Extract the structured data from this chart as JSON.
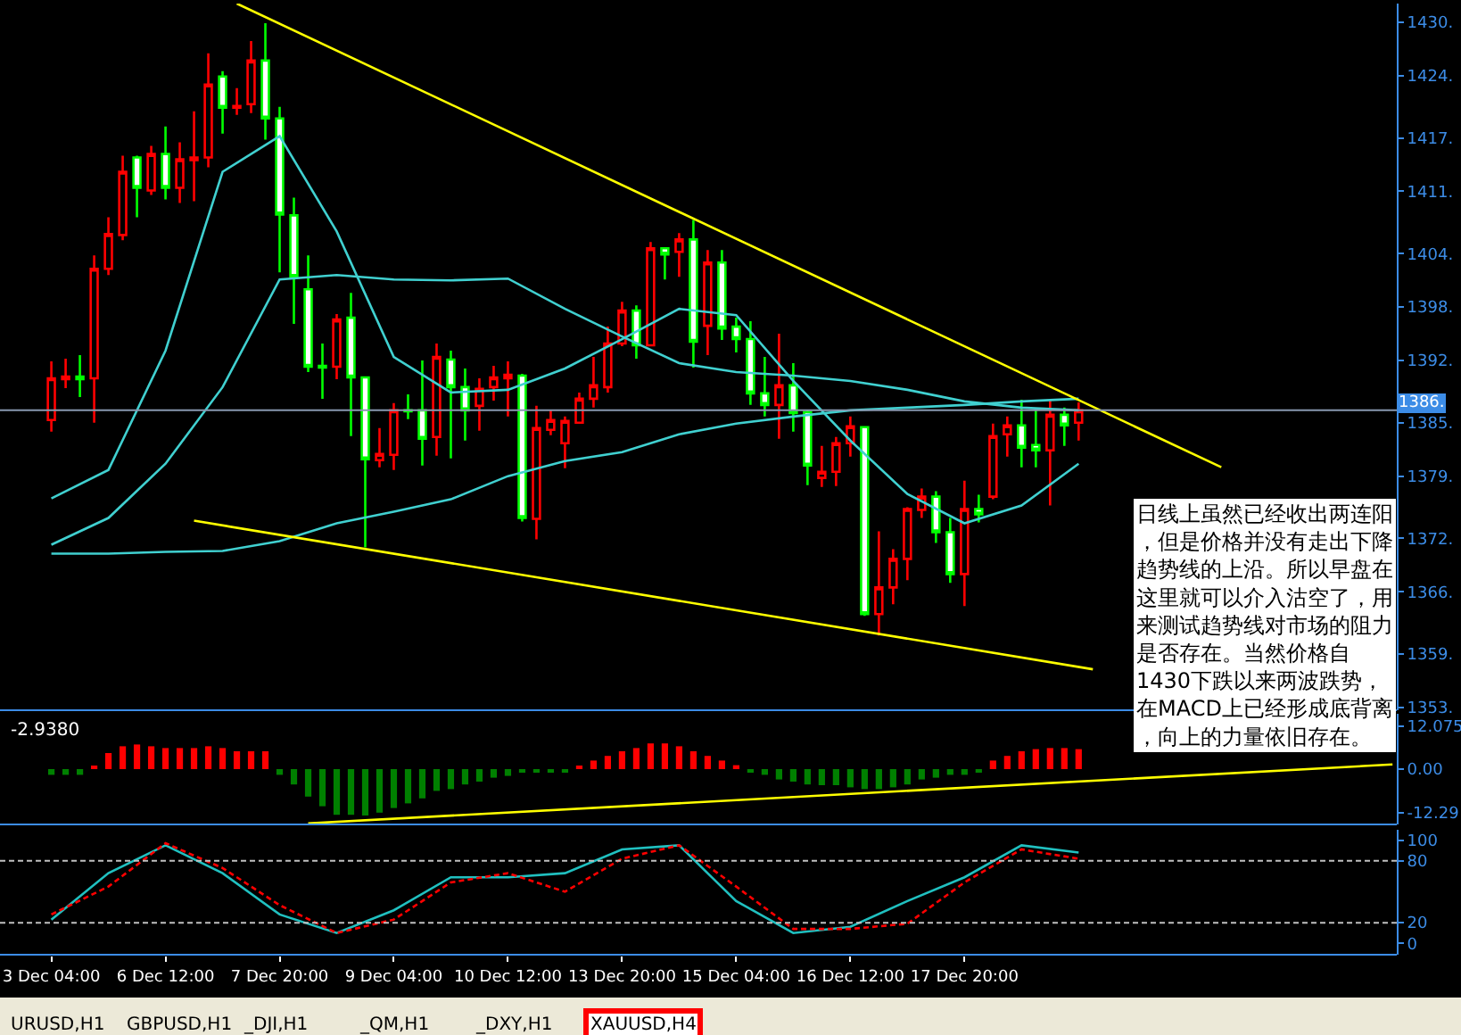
{
  "chart_data": [
    {
      "type": "candlestick",
      "categories": [
        "3 Dec 04:00",
        null,
        null,
        null,
        null,
        null,
        null,
        null,
        "6 Dec 12:00",
        null,
        null,
        null,
        null,
        null,
        null,
        null,
        "7 Dec 20:00",
        null,
        null,
        null,
        null,
        null,
        null,
        null,
        "9 Dec 04:00",
        null,
        null,
        null,
        null,
        null,
        null,
        null,
        "10 Dec 12:00",
        null,
        null,
        null,
        null,
        null,
        null,
        null,
        "13 Dec 20:00",
        null,
        null,
        null,
        null,
        null,
        null,
        null,
        "15 Dec 04:00",
        null,
        null,
        null,
        null,
        null,
        null,
        null,
        "16 Dec 12:00",
        null,
        null,
        null,
        null,
        null,
        null,
        null,
        "17 Dec 20:00",
        null,
        null,
        null,
        null,
        null,
        null,
        null,
        null,
        null,
        null,
        null,
        null,
        null,
        null,
        null,
        null,
        null,
        null,
        null,
        null,
        null,
        null,
        null,
        null,
        null,
        null,
        null,
        null,
        null,
        null
      ],
      "ohlc": [
        [
          1385.3,
          1391.9,
          1384.0,
          1390.0
        ],
        [
          1389.9,
          1392.2,
          1388.9,
          1390.2
        ],
        [
          1390.2,
          1392.6,
          1387.9,
          1389.9
        ],
        [
          1390.0,
          1403.8,
          1385.0,
          1402.3
        ],
        [
          1402.3,
          1408.1,
          1401.6,
          1406.2
        ],
        [
          1406.1,
          1415.0,
          1405.5,
          1413.2
        ],
        [
          1414.8,
          1415.0,
          1408.1,
          1411.4
        ],
        [
          1411.1,
          1416.1,
          1410.6,
          1415.2
        ],
        [
          1415.2,
          1418.3,
          1410.1,
          1411.4
        ],
        [
          1411.4,
          1416.5,
          1409.7,
          1414.6
        ],
        [
          1414.5,
          1420.0,
          1409.9,
          1414.8
        ],
        [
          1414.8,
          1426.5,
          1413.7,
          1423.0
        ],
        [
          1423.9,
          1424.5,
          1417.5,
          1420.4
        ],
        [
          1420.4,
          1422.6,
          1419.6,
          1420.6
        ],
        [
          1420.8,
          1427.9,
          1419.8,
          1425.7
        ],
        [
          1425.7,
          1429.9,
          1416.8,
          1419.2
        ],
        [
          1419.2,
          1420.5,
          1401.9,
          1408.4
        ],
        [
          1408.3,
          1410.3,
          1396.1,
          1401.4
        ],
        [
          1400.0,
          1403.8,
          1390.7,
          1391.3
        ],
        [
          1391.4,
          1393.9,
          1387.7,
          1391.2
        ],
        [
          1391.3,
          1397.2,
          1389.9,
          1396.6
        ],
        [
          1396.8,
          1399.6,
          1383.5,
          1390.1
        ],
        [
          1390.1,
          1390.1,
          1371.0,
          1380.9
        ],
        [
          1380.8,
          1384.4,
          1380.0,
          1381.5
        ],
        [
          1381.4,
          1387.2,
          1379.7,
          1386.4
        ],
        [
          1386.4,
          1388.2,
          1385.4,
          1386.3
        ],
        [
          1386.4,
          1392.0,
          1380.2,
          1383.2
        ],
        [
          1383.4,
          1393.9,
          1381.3,
          1392.4
        ],
        [
          1392.1,
          1393.1,
          1381.0,
          1389.0
        ],
        [
          1389.0,
          1391.1,
          1383.0,
          1386.4
        ],
        [
          1386.9,
          1390.0,
          1384.1,
          1388.8
        ],
        [
          1389.0,
          1391.4,
          1387.5,
          1390.1
        ],
        [
          1390.0,
          1391.9,
          1385.7,
          1390.4
        ],
        [
          1390.3,
          1390.5,
          1373.9,
          1374.3
        ],
        [
          1374.2,
          1386.9,
          1371.9,
          1384.4
        ],
        [
          1384.2,
          1386.4,
          1383.6,
          1385.3
        ],
        [
          1382.7,
          1385.7,
          1379.9,
          1385.2
        ],
        [
          1385.0,
          1388.4,
          1384.9,
          1387.7
        ],
        [
          1387.7,
          1392.4,
          1386.7,
          1389.2
        ],
        [
          1389.0,
          1395.8,
          1388.4,
          1393.9
        ],
        [
          1393.9,
          1398.6,
          1393.6,
          1397.6
        ],
        [
          1397.6,
          1398.2,
          1392.2,
          1393.7
        ],
        [
          1393.7,
          1405.3,
          1393.6,
          1404.6
        ],
        [
          1404.6,
          1404.6,
          1401.1,
          1403.9
        ],
        [
          1404.2,
          1406.3,
          1401.4,
          1405.6
        ],
        [
          1405.6,
          1407.8,
          1391.2,
          1394.1
        ],
        [
          1395.9,
          1404.4,
          1392.6,
          1403.0
        ],
        [
          1403.0,
          1404.4,
          1394.3,
          1395.6
        ],
        [
          1395.8,
          1396.8,
          1392.9,
          1394.4
        ],
        [
          1394.4,
          1396.4,
          1387.0,
          1388.3
        ],
        [
          1388.3,
          1392.4,
          1385.7,
          1387.0
        ],
        [
          1387.0,
          1395.0,
          1383.2,
          1389.2
        ],
        [
          1389.2,
          1391.7,
          1384.0,
          1386.1
        ],
        [
          1386.2,
          1386.4,
          1378.0,
          1380.2
        ],
        [
          1378.8,
          1382.4,
          1377.8,
          1379.5
        ],
        [
          1379.5,
          1383.4,
          1377.9,
          1382.7
        ],
        [
          1382.7,
          1385.7,
          1381.2,
          1384.6
        ],
        [
          1384.5,
          1384.6,
          1363.3,
          1363.5
        ],
        [
          1363.5,
          1372.8,
          1361.1,
          1366.5
        ],
        [
          1366.5,
          1370.8,
          1364.6,
          1369.7
        ],
        [
          1369.7,
          1375.5,
          1367.3,
          1375.3
        ],
        [
          1375.2,
          1377.6,
          1374.3,
          1376.7
        ],
        [
          1376.7,
          1377.3,
          1371.5,
          1372.7
        ],
        [
          1372.7,
          1374.3,
          1367.0,
          1368.0
        ],
        [
          1368.0,
          1378.5,
          1364.4,
          1375.3
        ],
        [
          1375.3,
          1376.9,
          1373.8,
          1374.7
        ],
        [
          1376.7,
          1384.9,
          1376.4,
          1383.5
        ],
        [
          1383.7,
          1385.7,
          1381.2,
          1384.7
        ],
        [
          1384.7,
          1387.6,
          1380.0,
          1382.2
        ],
        [
          1382.5,
          1386.5,
          1380.0,
          1381.9
        ],
        [
          1381.9,
          1387.6,
          1375.7,
          1385.9
        ],
        [
          1385.9,
          1386.7,
          1382.4,
          1384.7
        ],
        [
          1385.0,
          1387.3,
          1383.0,
          1386.4
        ],
        null,
        null,
        null,
        null,
        null,
        null,
        null,
        null,
        null,
        null,
        null,
        null,
        null,
        null,
        null,
        null,
        null,
        null,
        null,
        null,
        null,
        null
      ],
      "colors": [
        "#ff0000",
        "#ff0000",
        "#00ff00",
        "#ff0000",
        "#ff0000",
        "#ff0000",
        "#00ff00",
        "#ff0000",
        "#00ff00",
        "#ff0000",
        "#ff0000",
        "#ff0000",
        "#00ff00",
        "#ff0000",
        "#ff0000",
        "#00ff00",
        "#00ff00",
        "#00ff00",
        "#00ff00",
        "#00ff00",
        "#ff0000",
        "#00ff00",
        "#00ff00",
        "#ff0000",
        "#ff0000",
        "#00ff00",
        "#00ff00",
        "#ff0000",
        "#00ff00",
        "#00ff00",
        "#ff0000",
        "#ff0000",
        "#ff0000",
        "#00ff00",
        "#ff0000",
        "#ff0000",
        "#ff0000",
        "#ff0000",
        "#ff0000",
        "#ff0000",
        "#ff0000",
        "#00ff00",
        "#ff0000",
        "#00ff00",
        "#ff0000",
        "#00ff00",
        "#ff0000",
        "#00ff00",
        "#00ff00",
        "#00ff00",
        "#00ff00",
        "#ff0000",
        "#00ff00",
        "#00ff00",
        "#ff0000",
        "#ff0000",
        "#ff0000",
        "#00ff00",
        "#ff0000",
        "#ff0000",
        "#ff0000",
        "#ff0000",
        "#00ff00",
        "#00ff00",
        "#ff0000",
        "#00ff00",
        "#ff0000",
        "#ff0000",
        "#00ff00",
        "#00ff00",
        "#ff0000",
        "#00ff00",
        "#ff0000",
        null,
        null,
        null,
        null,
        null,
        null,
        null,
        null,
        null,
        null,
        null,
        null,
        null,
        null,
        null,
        null,
        null,
        null,
        null,
        null,
        null,
        null
      ],
      "series": [
        {
          "type": "line",
          "color": "#40d0d0",
          "values": [
            1376.5,
            null,
            null,
            null,
            1379.7,
            null,
            null,
            null,
            1393.1,
            null,
            null,
            null,
            1413.2,
            null,
            null,
            null,
            1417.2,
            null,
            null,
            null,
            1406.5,
            null,
            null,
            null,
            1392.4,
            null,
            null,
            null,
            1388.4,
            null,
            null,
            null,
            1388.7,
            null,
            null,
            null,
            1391.1,
            null,
            null,
            null,
            1394.4,
            null,
            null,
            null,
            1397.8,
            null,
            null,
            null,
            1397.1,
            null,
            null,
            null,
            1389.7,
            null,
            null,
            null,
            1383.0,
            null,
            null,
            null,
            1377.0,
            null,
            null,
            null,
            1373.7,
            null,
            null,
            null,
            1375.7,
            null,
            null,
            null,
            1380.4,
            null,
            null,
            null,
            null,
            null,
            null,
            null,
            null,
            null,
            null,
            null,
            null,
            null,
            null,
            null,
            null,
            null,
            null,
            null,
            null,
            null,
            null
          ]
        },
        {
          "type": "line",
          "color": "#40d0d0",
          "values": [
            1371.3,
            null,
            null,
            null,
            1374.3,
            null,
            null,
            null,
            1380.4,
            null,
            null,
            null,
            1389.0,
            null,
            null,
            null,
            1401.1,
            null,
            null,
            null,
            1401.6,
            null,
            null,
            null,
            1401.1,
            null,
            null,
            null,
            1401.0,
            null,
            null,
            null,
            1401.2,
            null,
            null,
            null,
            1397.8,
            null,
            null,
            null,
            1394.7,
            null,
            null,
            null,
            1391.7,
            null,
            null,
            null,
            1390.7,
            null,
            null,
            null,
            1390.3,
            null,
            null,
            null,
            1389.7,
            null,
            null,
            null,
            1388.7,
            null,
            null,
            null,
            1387.4,
            null,
            null,
            null,
            1386.7,
            null,
            null,
            null,
            1386.4,
            null,
            null,
            null,
            null,
            null,
            null,
            null,
            null,
            null,
            null,
            null,
            null,
            null,
            null,
            null,
            null,
            null,
            null,
            null,
            null,
            null,
            null
          ]
        },
        {
          "type": "line",
          "color": "#40d0d0",
          "values": [
            1370.3,
            null,
            null,
            null,
            1370.3,
            null,
            null,
            null,
            1370.5,
            null,
            null,
            null,
            1370.6,
            null,
            null,
            null,
            1371.7,
            null,
            null,
            null,
            1373.7,
            null,
            null,
            null,
            1375.0,
            null,
            null,
            null,
            1376.4,
            null,
            null,
            null,
            1379.0,
            null,
            null,
            null,
            1380.7,
            null,
            null,
            null,
            1381.7,
            null,
            null,
            null,
            1383.7,
            null,
            null,
            null,
            1384.9,
            null,
            null,
            null,
            1385.7,
            null,
            null,
            null,
            1386.4,
            null,
            null,
            null,
            1386.7,
            null,
            null,
            null,
            1387.0,
            null,
            null,
            null,
            1387.4,
            null,
            null,
            null,
            1387.7,
            null,
            null,
            null,
            null,
            null,
            null,
            null,
            null,
            null,
            null,
            null,
            null,
            null,
            null,
            null,
            null,
            null,
            null,
            null,
            null,
            null,
            null
          ]
        },
        {
          "type": "line",
          "color": "#ffff00",
          "values": [
            null,
            null,
            null,
            null,
            null,
            null,
            null,
            null,
            null,
            null,
            null,
            null,
            null,
            1432.1,
            null,
            null,
            null,
            null,
            null,
            null,
            null,
            null,
            null,
            null,
            null,
            null,
            null,
            null,
            null,
            null,
            null,
            null,
            null,
            null,
            null,
            null,
            null,
            null,
            null,
            null,
            null,
            null,
            null,
            null,
            null,
            null,
            null,
            null,
            null,
            null,
            null,
            null,
            null,
            null,
            null,
            null,
            null,
            null,
            null,
            null,
            null,
            null,
            null,
            null,
            null,
            null,
            null,
            null,
            null,
            null,
            null,
            null,
            null,
            null,
            null,
            null,
            null,
            null,
            null,
            null,
            null,
            null,
            1380.0,
            null,
            null,
            null,
            null,
            null,
            null,
            null,
            null,
            null,
            null,
            null,
            null
          ]
        },
        {
          "type": "line",
          "color": "#ffff00",
          "values": [
            null,
            null,
            null,
            null,
            null,
            null,
            null,
            null,
            null,
            null,
            1374.0,
            null,
            null,
            null,
            null,
            null,
            null,
            null,
            null,
            null,
            null,
            null,
            null,
            null,
            null,
            null,
            null,
            null,
            null,
            null,
            null,
            null,
            null,
            null,
            null,
            null,
            null,
            null,
            null,
            null,
            null,
            null,
            null,
            null,
            null,
            null,
            null,
            null,
            null,
            null,
            null,
            null,
            null,
            null,
            null,
            null,
            null,
            null,
            null,
            null,
            null,
            null,
            null,
            null,
            null,
            null,
            null,
            null,
            null,
            null,
            null,
            null,
            null,
            1357.3,
            null,
            null,
            null,
            null,
            null,
            null,
            null,
            null,
            null,
            null,
            null,
            null,
            null,
            null,
            null,
            null,
            null,
            null,
            null,
            null,
            null
          ]
        }
      ],
      "ylim": [
        1352.7,
        1432.1
      ],
      "yticks": [
        {
          "value": 1353,
          "label": "1353."
        },
        {
          "value": 1359,
          "label": "1359."
        },
        {
          "value": 1366,
          "label": "1366."
        },
        {
          "value": 1372,
          "label": "1372."
        },
        {
          "value": 1379,
          "label": "1379."
        },
        {
          "value": 1385,
          "label": "1385."
        },
        {
          "value": 1392,
          "label": "1392."
        },
        {
          "value": 1398,
          "label": "1398."
        },
        {
          "value": 1404,
          "label": "1404."
        },
        {
          "value": 1411,
          "label": "1411."
        },
        {
          "value": 1417,
          "label": "1417."
        },
        {
          "value": 1424,
          "label": "1424."
        },
        {
          "value": 1430,
          "label": "1430."
        }
      ],
      "ref_lines": [
        {
          "axis": "y",
          "value": 1386.4,
          "label": "1386.",
          "color": "#8898b0"
        }
      ],
      "annotations": [
        "日线上虽然已经收出两连阳，但是价格并没有走出下降趋势线的上沿。所以早盘在这里就可以介入沽空了，用来测试趋势线对市场的阻力是否存在。当然价格自1430下跌以来两波跌势，在MACD上已经形成底背离，向上的力量依旧存在。"
      ],
      "tick_labels": "y"
    },
    {
      "type": "bar",
      "categories": [
        "3 Dec 04:00",
        null,
        null,
        null,
        null,
        null,
        null,
        null,
        "6 Dec 12:00",
        null,
        null,
        null,
        null,
        null,
        null,
        null,
        "7 Dec 20:00",
        null,
        null,
        null,
        null,
        null,
        null,
        null,
        "9 Dec 04:00",
        null,
        null,
        null,
        null,
        null,
        null,
        null,
        "10 Dec 12:00",
        null,
        null,
        null,
        null,
        null,
        null,
        null,
        "13 Dec 20:00",
        null,
        null,
        null,
        null,
        null,
        null,
        null,
        "15 Dec 04:00",
        null,
        null,
        null,
        null,
        null,
        null,
        null,
        "16 Dec 12:00",
        null,
        null,
        null,
        null,
        null,
        null,
        null,
        "17 Dec 20:00",
        null,
        null,
        null,
        null,
        null,
        null,
        null,
        null,
        null,
        null,
        null,
        null,
        null,
        null,
        null,
        null,
        null,
        null,
        null,
        null,
        null,
        null,
        null,
        null,
        null,
        null,
        null,
        null,
        null,
        null
      ],
      "series": [
        {
          "type": "bar",
          "values": [
            -1.6,
            -1.6,
            -1.6,
            0.8,
            4.5,
            6.4,
            6.9,
            6.4,
            5.9,
            5.9,
            5.9,
            6.4,
            5.9,
            5.0,
            5.0,
            5.0,
            -1.6,
            -4.3,
            -7.7,
            -10.4,
            -12.8,
            -12.8,
            -13.0,
            -12.2,
            -10.9,
            -9.6,
            -8.2,
            -6.1,
            -5.6,
            -4.3,
            -3.5,
            -2.4,
            -1.9,
            -0.8,
            -0.8,
            -0.8,
            -0.8,
            0.8,
            2.4,
            3.7,
            5.0,
            5.9,
            7.2,
            7.2,
            6.4,
            5.0,
            3.7,
            2.4,
            1.1,
            -0.8,
            -1.6,
            -2.9,
            -3.5,
            -4.3,
            -4.5,
            -4.5,
            -5.1,
            -5.6,
            -5.6,
            -5.1,
            -4.3,
            -2.9,
            -2.4,
            -1.6,
            -1.6,
            -0.8,
            2.4,
            3.7,
            5.0,
            5.6,
            5.9,
            5.9,
            5.6,
            null,
            null,
            null,
            null,
            null,
            null,
            null,
            null,
            null,
            null,
            null,
            null,
            null,
            null,
            null,
            null,
            null,
            null,
            null,
            null,
            null,
            null
          ],
          "colors": [
            "#008000",
            "#008000",
            "#008000",
            "#ff0000",
            "#ff0000",
            "#ff0000",
            "#ff0000",
            "#ff0000",
            "#ff0000",
            "#ff0000",
            "#ff0000",
            "#ff0000",
            "#ff0000",
            "#ff0000",
            "#ff0000",
            "#ff0000",
            "#008000",
            "#008000",
            "#008000",
            "#008000",
            "#008000",
            "#008000",
            "#008000",
            "#008000",
            "#008000",
            "#008000",
            "#008000",
            "#008000",
            "#008000",
            "#008000",
            "#008000",
            "#008000",
            "#008000",
            "#008000",
            "#008000",
            "#008000",
            "#008000",
            "#ff0000",
            "#ff0000",
            "#ff0000",
            "#ff0000",
            "#ff0000",
            "#ff0000",
            "#ff0000",
            "#ff0000",
            "#ff0000",
            "#ff0000",
            "#ff0000",
            "#ff0000",
            "#008000",
            "#008000",
            "#008000",
            "#008000",
            "#008000",
            "#008000",
            "#008000",
            "#008000",
            "#008000",
            "#008000",
            "#008000",
            "#008000",
            "#008000",
            "#008000",
            "#008000",
            "#008000",
            "#008000",
            "#ff0000",
            "#ff0000",
            "#ff0000",
            "#ff0000",
            "#ff0000",
            "#ff0000",
            "#ff0000",
            null,
            null,
            null,
            null,
            null,
            null,
            null,
            null,
            null,
            null,
            null,
            null,
            null,
            null,
            null,
            null,
            null,
            null,
            null,
            null,
            null,
            null
          ]
        },
        {
          "type": "line",
          "color": "#ffff00",
          "values": [
            null,
            null,
            null,
            null,
            null,
            null,
            null,
            null,
            null,
            null,
            null,
            null,
            null,
            null,
            null,
            null,
            null,
            null,
            -15.2,
            null,
            null,
            null,
            null,
            null,
            null,
            null,
            null,
            null,
            null,
            null,
            null,
            null,
            null,
            null,
            null,
            null,
            null,
            null,
            null,
            null,
            null,
            null,
            null,
            null,
            null,
            null,
            null,
            null,
            null,
            null,
            null,
            null,
            null,
            null,
            null,
            null,
            null,
            null,
            null,
            null,
            null,
            null,
            null,
            null,
            null,
            null,
            null,
            null,
            null,
            null,
            null,
            null,
            null,
            null,
            null,
            null,
            null,
            null,
            null,
            null,
            null,
            null,
            null,
            null,
            null,
            null,
            null,
            null,
            null,
            null,
            null,
            null,
            null,
            null,
            1.3
          ]
        }
      ],
      "ylim": [
        -15.5,
        15.5
      ],
      "yticks": [
        {
          "value": 12.075,
          "label": "12.075"
        },
        {
          "value": 0,
          "label": "0.00"
        },
        {
          "value": -12.29,
          "label": "-12.29"
        }
      ],
      "annotations": [
        "-2.9380"
      ],
      "tick_labels": "y"
    },
    {
      "type": "line",
      "categories": [
        "3 Dec 04:00",
        null,
        null,
        null,
        null,
        null,
        null,
        null,
        "6 Dec 12:00",
        null,
        null,
        null,
        null,
        null,
        null,
        null,
        "7 Dec 20:00",
        null,
        null,
        null,
        null,
        null,
        null,
        null,
        "9 Dec 04:00",
        null,
        null,
        null,
        null,
        null,
        null,
        null,
        "10 Dec 12:00",
        null,
        null,
        null,
        null,
        null,
        null,
        null,
        "13 Dec 20:00",
        null,
        null,
        null,
        null,
        null,
        null,
        null,
        "15 Dec 04:00",
        null,
        null,
        null,
        null,
        null,
        null,
        null,
        "16 Dec 12:00",
        null,
        null,
        null,
        null,
        null,
        null,
        null,
        "17 Dec 20:00",
        null,
        null,
        null,
        null,
        null,
        null,
        null,
        null,
        null,
        null,
        null,
        null,
        null,
        null,
        null,
        null,
        null,
        null,
        null,
        null,
        null,
        null,
        null,
        null,
        null,
        null,
        null,
        null,
        null,
        null
      ],
      "series": [
        {
          "color": "#20c0c0",
          "line_style": "solid",
          "values": [
            23,
            null,
            null,
            null,
            68,
            null,
            null,
            null,
            95,
            null,
            null,
            null,
            68,
            null,
            null,
            null,
            28,
            null,
            null,
            null,
            10,
            null,
            null,
            null,
            32,
            null,
            null,
            null,
            64,
            null,
            null,
            null,
            64,
            null,
            null,
            null,
            68,
            null,
            null,
            null,
            91,
            null,
            null,
            null,
            95,
            null,
            null,
            null,
            41,
            null,
            null,
            null,
            10,
            null,
            null,
            null,
            16,
            null,
            null,
            null,
            41,
            null,
            null,
            null,
            64,
            null,
            null,
            null,
            95,
            null,
            null,
            null,
            88,
            null,
            null,
            null,
            null,
            null,
            null,
            null,
            null,
            null,
            null,
            null,
            null,
            null,
            null,
            null,
            null,
            null,
            null,
            null,
            null,
            null,
            null
          ]
        },
        {
          "color": "#ff0000",
          "line_style": "dashed",
          "values": [
            28,
            null,
            null,
            null,
            55,
            null,
            null,
            null,
            97,
            null,
            null,
            null,
            73,
            null,
            null,
            null,
            37,
            null,
            null,
            null,
            10,
            null,
            null,
            null,
            23,
            null,
            null,
            null,
            59,
            null,
            null,
            null,
            68,
            null,
            null,
            null,
            50,
            null,
            null,
            null,
            82,
            null,
            null,
            null,
            95,
            null,
            null,
            null,
            55,
            null,
            null,
            null,
            14,
            null,
            null,
            null,
            14,
            null,
            null,
            null,
            19,
            null,
            null,
            null,
            59,
            null,
            null,
            null,
            91,
            null,
            null,
            null,
            82,
            null,
            null,
            null,
            null,
            null,
            null,
            null,
            null,
            null,
            null,
            null,
            null,
            null,
            null,
            null,
            null,
            null,
            null,
            null,
            null,
            null,
            null
          ]
        }
      ],
      "ylim": [
        -11,
        110
      ],
      "yticks": [
        0,
        20,
        80,
        100
      ],
      "ref_lines": [
        {
          "axis": "y",
          "value": 80,
          "label": null,
          "color": "#c0c0c0",
          "line_style": "dashed"
        },
        {
          "axis": "y",
          "value": 20,
          "label": null,
          "color": "#c0c0c0",
          "line_style": "dashed"
        }
      ],
      "annotations": [
        "URUSD,H1",
        "GBPUSD,H1",
        "_DJI,H1",
        "_QM,H1",
        "_DXY,H1",
        "XAUUSD,H4"
      ]
    }
  ]
}
